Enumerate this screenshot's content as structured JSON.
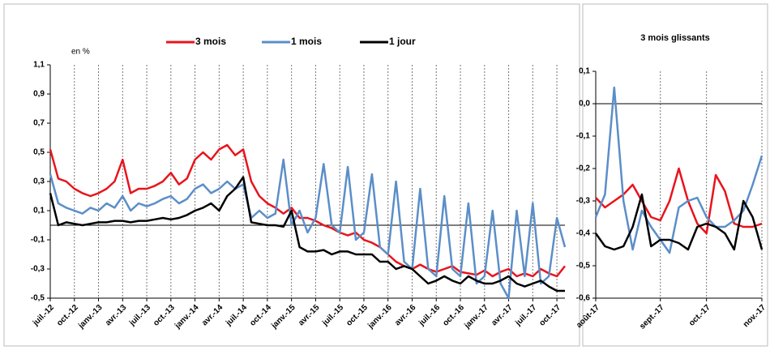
{
  "chart_data": [
    {
      "type": "line",
      "y_label": "en %",
      "categories": [
        "juil.-12",
        null,
        null,
        "oct.-12",
        null,
        null,
        "janv.-13",
        null,
        null,
        "avr.-13",
        null,
        null,
        "juil.-13",
        null,
        null,
        "oct.-13",
        null,
        null,
        "janv.-14",
        null,
        null,
        "avr.-14",
        null,
        null,
        "juil.-14",
        null,
        null,
        "oct.-14",
        null,
        null,
        "janv.-15",
        null,
        null,
        "avr.-15",
        null,
        null,
        "juil.-15",
        null,
        null,
        "oct.-15",
        null,
        null,
        "janv.-16",
        null,
        null,
        "avr.-16",
        null,
        null,
        "juil.-16",
        null,
        null,
        "oct.-16",
        null,
        null,
        "janv.-17",
        null,
        null,
        "avr.-17",
        null,
        null,
        "juil.-17",
        null,
        null,
        "oct.-17",
        null
      ],
      "series": [
        {
          "name": "3 mois",
          "color": "#e8141c",
          "values": [
            0.52,
            0.32,
            0.3,
            0.25,
            0.22,
            0.2,
            0.22,
            0.25,
            0.3,
            0.45,
            0.22,
            0.25,
            0.25,
            0.27,
            0.3,
            0.36,
            0.28,
            0.32,
            0.45,
            0.5,
            0.45,
            0.52,
            0.55,
            0.48,
            0.52,
            0.3,
            0.2,
            0.15,
            0.12,
            0.08,
            0.12,
            0.05,
            0.05,
            0.03,
            0.0,
            -0.02,
            -0.05,
            -0.07,
            -0.05,
            -0.1,
            -0.12,
            -0.15,
            -0.2,
            -0.25,
            -0.28,
            -0.3,
            -0.27,
            -0.3,
            -0.32,
            -0.3,
            -0.28,
            -0.32,
            -0.33,
            -0.34,
            -0.31,
            -0.35,
            -0.32,
            -0.3,
            -0.35,
            -0.33,
            -0.35,
            -0.3,
            -0.33,
            -0.35,
            -0.28
          ]
        },
        {
          "name": "1 mois",
          "color": "#5b8ec8",
          "values": [
            0.35,
            0.15,
            0.12,
            0.1,
            0.08,
            0.12,
            0.1,
            0.15,
            0.12,
            0.2,
            0.1,
            0.15,
            0.13,
            0.15,
            0.18,
            0.2,
            0.15,
            0.18,
            0.25,
            0.28,
            0.22,
            0.25,
            0.3,
            0.25,
            0.28,
            0.05,
            0.1,
            0.05,
            0.08,
            0.45,
            0.0,
            0.1,
            -0.05,
            0.05,
            0.42,
            0.0,
            -0.05,
            0.4,
            -0.1,
            -0.05,
            0.35,
            -0.15,
            -0.2,
            0.3,
            -0.25,
            -0.3,
            0.25,
            -0.3,
            -0.35,
            0.2,
            -0.3,
            -0.35,
            0.15,
            -0.4,
            -0.35,
            0.1,
            -0.4,
            -0.5,
            0.1,
            -0.35,
            0.15,
            -0.4,
            -0.35,
            0.05,
            -0.15
          ]
        },
        {
          "name": "1 jour",
          "color": "#000000",
          "values": [
            0.22,
            0.0,
            0.02,
            0.01,
            0.0,
            0.01,
            0.02,
            0.02,
            0.03,
            0.03,
            0.02,
            0.03,
            0.03,
            0.04,
            0.05,
            0.04,
            0.05,
            0.07,
            0.1,
            0.12,
            0.15,
            0.1,
            0.2,
            0.25,
            0.33,
            0.02,
            0.01,
            0.0,
            0.0,
            -0.01,
            0.1,
            -0.15,
            -0.18,
            -0.18,
            -0.17,
            -0.2,
            -0.18,
            -0.18,
            -0.2,
            -0.2,
            -0.2,
            -0.25,
            -0.25,
            -0.3,
            -0.28,
            -0.3,
            -0.35,
            -0.4,
            -0.38,
            -0.35,
            -0.38,
            -0.4,
            -0.35,
            -0.38,
            -0.4,
            -0.4,
            -0.38,
            -0.35,
            -0.4,
            -0.42,
            -0.4,
            -0.38,
            -0.42,
            -0.45,
            -0.45
          ]
        }
      ],
      "ylim": [
        -0.5,
        1.1
      ],
      "yticks": [
        {
          "value": -0.5,
          "label": "-0,5"
        },
        {
          "value": -0.3,
          "label": "-0,3"
        },
        {
          "value": -0.1,
          "label": "-0,1"
        },
        {
          "value": 0.1,
          "label": "0,1"
        },
        {
          "value": 0.3,
          "label": "0,3"
        },
        {
          "value": 0.5,
          "label": "0,5"
        },
        {
          "value": 0.7,
          "label": "0,7"
        },
        {
          "value": 0.9,
          "label": "0,9"
        },
        {
          "value": 1.1,
          "label": "1,1"
        }
      ],
      "reference_line": 0,
      "grid": "x-dashed"
    },
    {
      "type": "line",
      "title": "3 mois glissants",
      "categories": [
        "août-17",
        null,
        null,
        null,
        null,
        null,
        null,
        "sept.-17",
        null,
        null,
        null,
        null,
        "oct.-17",
        null,
        null,
        null,
        null,
        null,
        "nov.-17"
      ],
      "series": [
        {
          "color": "#e8141c",
          "values": [
            -0.29,
            -0.32,
            -0.3,
            -0.28,
            -0.25,
            -0.3,
            -0.35,
            -0.36,
            -0.3,
            -0.2,
            -0.3,
            -0.37,
            -0.4,
            -0.22,
            -0.27,
            -0.37,
            -0.38,
            -0.38,
            -0.37
          ]
        },
        {
          "color": "#5b8ec8",
          "values": [
            -0.35,
            -0.28,
            0.05,
            -0.3,
            -0.45,
            -0.33,
            -0.38,
            -0.42,
            -0.46,
            -0.32,
            -0.3,
            -0.29,
            -0.35,
            -0.38,
            -0.38,
            -0.36,
            -0.33,
            -0.25,
            -0.16
          ]
        },
        {
          "color": "#000000",
          "values": [
            -0.4,
            -0.44,
            -0.45,
            -0.44,
            -0.38,
            -0.28,
            -0.44,
            -0.42,
            -0.42,
            -0.43,
            -0.45,
            -0.38,
            -0.37,
            -0.38,
            -0.4,
            -0.45,
            -0.3,
            -0.35,
            -0.45
          ]
        }
      ],
      "ylim": [
        -0.6,
        0.1
      ],
      "yticks": [
        {
          "value": -0.6,
          "label": "-0,6"
        },
        {
          "value": -0.5,
          "label": "-0,5"
        },
        {
          "value": -0.4,
          "label": "-0,4"
        },
        {
          "value": -0.3,
          "label": "-0,3"
        },
        {
          "value": -0.2,
          "label": "-0,2"
        },
        {
          "value": -0.1,
          "label": "-0,1"
        },
        {
          "value": 0.0,
          "label": "0,0"
        },
        {
          "value": 0.1,
          "label": "0,1"
        }
      ],
      "reference_line": 0,
      "grid": "x-dashed"
    }
  ]
}
